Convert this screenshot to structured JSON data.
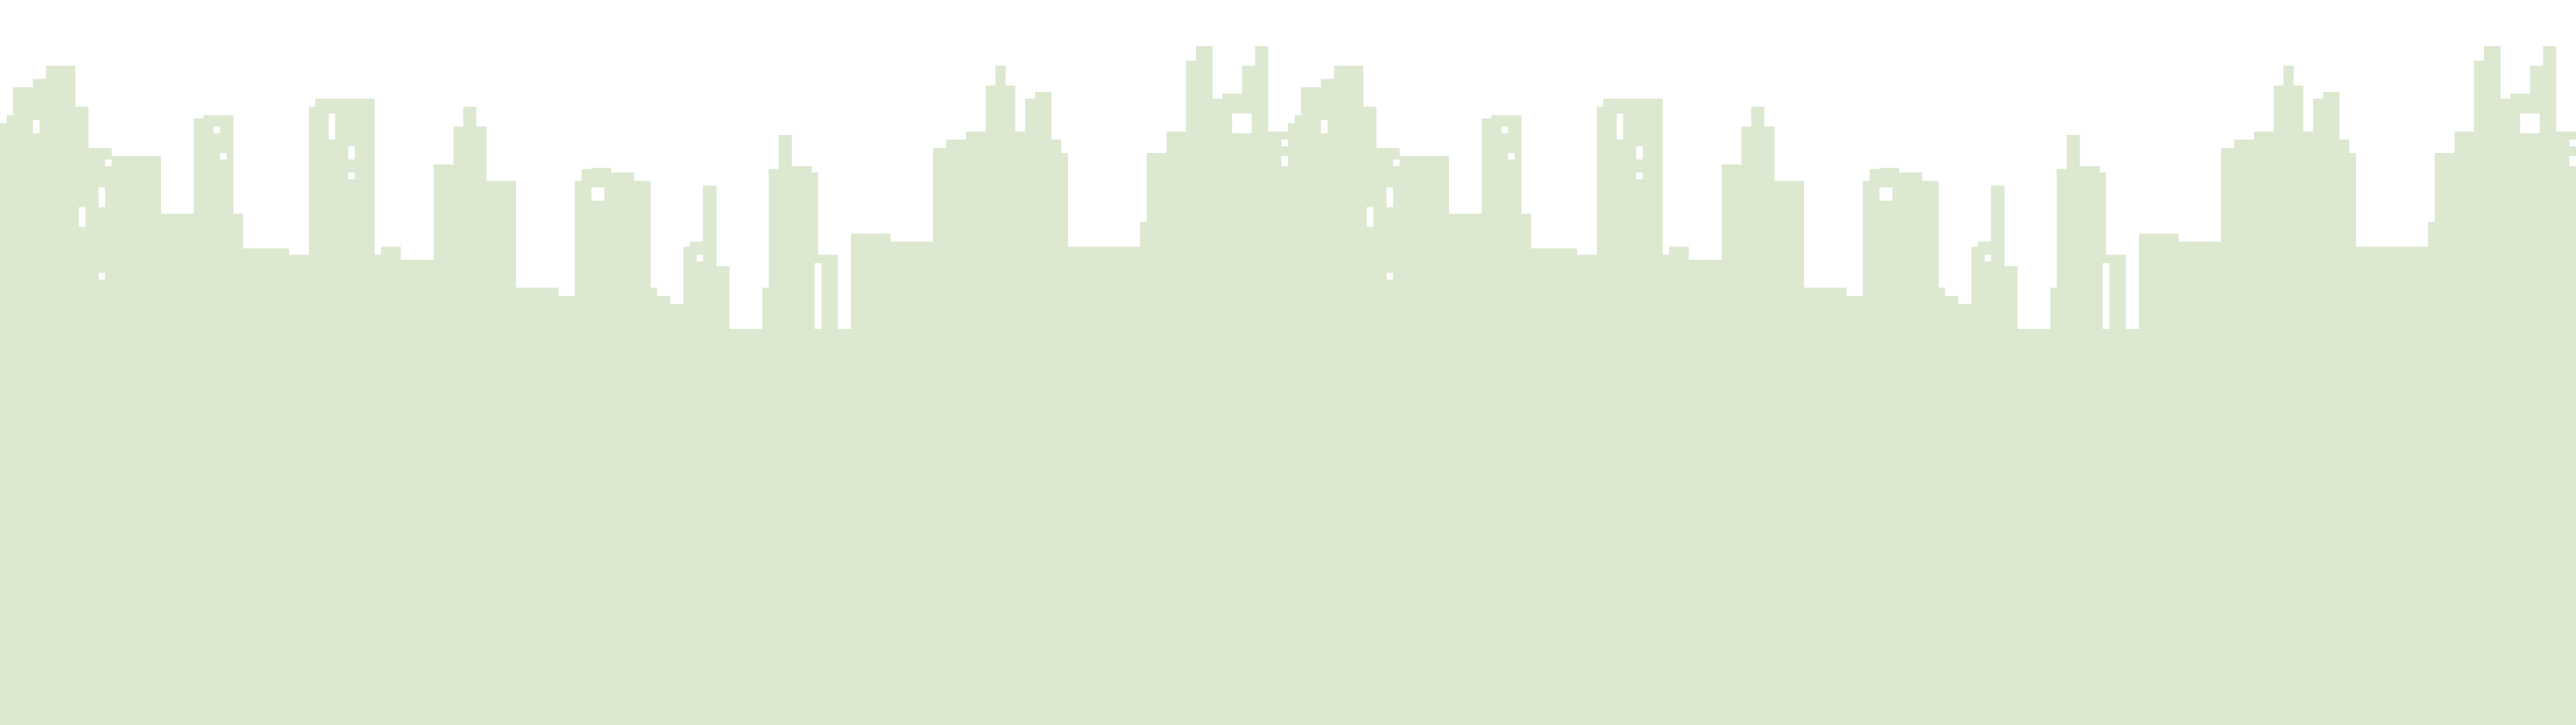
{
  "scene": {
    "background_color": "#ffffff",
    "skyline_color": "#dce8cf",
    "window_color": "#ffffff",
    "layers": [
      {
        "name": "city-skyline",
        "visible": true
      }
    ]
  }
}
